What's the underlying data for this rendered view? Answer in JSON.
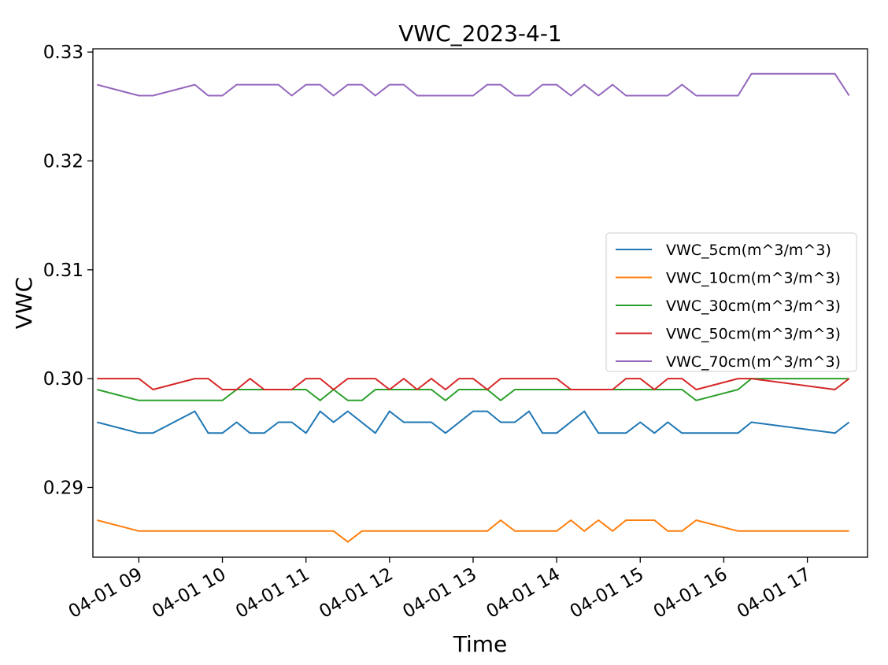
{
  "chart_data": {
    "type": "line",
    "title": "VWC_2023-4-1",
    "xlabel": "Time",
    "ylabel": "VWC",
    "x_unit": "hours",
    "xlim": [
      8.45,
      17.72
    ],
    "ylim": [
      0.2836,
      0.3303
    ],
    "yticks": [
      0.29,
      0.3,
      0.31,
      0.32,
      0.33
    ],
    "ytick_labels": [
      "0.29",
      "0.30",
      "0.31",
      "0.32",
      "0.33"
    ],
    "xticks": [
      9,
      10,
      11,
      12,
      13,
      14,
      15,
      16,
      17
    ],
    "xtick_labels": [
      "04-01 09",
      "04-01 10",
      "04-01 11",
      "04-01 12",
      "04-01 13",
      "04-01 14",
      "04-01 15",
      "04-01 16",
      "04-01 17"
    ],
    "legend_position": "center-right",
    "grid": false,
    "series": [
      {
        "name": "VWC_5cm(m^3/m^3)",
        "color": "#1f77b4",
        "x": [
          8.5,
          9.0,
          9.17,
          9.67,
          9.83,
          10.0,
          10.17,
          10.33,
          10.5,
          10.67,
          10.83,
          11.0,
          11.17,
          11.33,
          11.5,
          11.83,
          12.0,
          12.17,
          12.5,
          12.67,
          13.0,
          13.17,
          13.33,
          13.5,
          13.67,
          13.83,
          14.0,
          14.33,
          14.5,
          14.83,
          15.0,
          15.17,
          15.33,
          15.5,
          16.17,
          16.33,
          17.33,
          17.5
        ],
        "y": [
          0.296,
          0.295,
          0.295,
          0.297,
          0.295,
          0.295,
          0.296,
          0.295,
          0.295,
          0.296,
          0.296,
          0.295,
          0.297,
          0.296,
          0.297,
          0.295,
          0.297,
          0.296,
          0.296,
          0.295,
          0.297,
          0.297,
          0.296,
          0.296,
          0.297,
          0.295,
          0.295,
          0.297,
          0.295,
          0.295,
          0.296,
          0.295,
          0.296,
          0.295,
          0.295,
          0.296,
          0.295,
          0.296
        ]
      },
      {
        "name": "VWC_10cm(m^3/m^3)",
        "color": "#ff7f0e",
        "x": [
          8.5,
          9.0,
          11.33,
          11.5,
          11.67,
          13.17,
          13.33,
          13.5,
          14.0,
          14.17,
          14.33,
          14.5,
          14.67,
          14.83,
          15.17,
          15.33,
          15.5,
          15.67,
          16.17,
          17.5
        ],
        "y": [
          0.287,
          0.286,
          0.286,
          0.285,
          0.286,
          0.286,
          0.287,
          0.286,
          0.286,
          0.287,
          0.286,
          0.287,
          0.286,
          0.287,
          0.287,
          0.286,
          0.286,
          0.287,
          0.286,
          0.286
        ]
      },
      {
        "name": "VWC_30cm(m^3/m^3)",
        "color": "#2ca02c",
        "x": [
          8.5,
          9.0,
          10.0,
          10.17,
          11.0,
          11.17,
          11.33,
          11.5,
          11.67,
          11.83,
          12.5,
          12.67,
          12.83,
          13.17,
          13.33,
          13.5,
          15.5,
          15.67,
          16.17,
          16.33,
          17.5
        ],
        "y": [
          0.299,
          0.298,
          0.298,
          0.299,
          0.299,
          0.298,
          0.299,
          0.298,
          0.298,
          0.299,
          0.299,
          0.298,
          0.299,
          0.299,
          0.298,
          0.299,
          0.299,
          0.298,
          0.299,
          0.3,
          0.3
        ]
      },
      {
        "name": "VWC_50cm(m^3/m^3)",
        "color": "#d62728",
        "x": [
          8.5,
          9.0,
          9.17,
          9.67,
          9.83,
          10.0,
          10.17,
          10.33,
          10.5,
          10.83,
          11.0,
          11.17,
          11.33,
          11.5,
          11.83,
          12.0,
          12.17,
          12.33,
          12.5,
          12.67,
          12.83,
          13.0,
          13.17,
          13.33,
          14.0,
          14.17,
          14.67,
          14.83,
          15.0,
          15.17,
          15.33,
          15.5,
          15.67,
          16.17,
          16.33,
          17.33,
          17.5
        ],
        "y": [
          0.3,
          0.3,
          0.299,
          0.3,
          0.3,
          0.299,
          0.299,
          0.3,
          0.299,
          0.299,
          0.3,
          0.3,
          0.299,
          0.3,
          0.3,
          0.299,
          0.3,
          0.299,
          0.3,
          0.299,
          0.3,
          0.3,
          0.299,
          0.3,
          0.3,
          0.299,
          0.299,
          0.3,
          0.3,
          0.299,
          0.3,
          0.3,
          0.299,
          0.3,
          0.3,
          0.299,
          0.3
        ]
      },
      {
        "name": "VWC_70cm(m^3/m^3)",
        "color": "#9467bd",
        "x": [
          8.5,
          9.0,
          9.17,
          9.67,
          9.83,
          10.0,
          10.17,
          10.67,
          10.83,
          11.0,
          11.17,
          11.33,
          11.5,
          11.67,
          11.83,
          12.0,
          12.17,
          12.33,
          13.0,
          13.17,
          13.33,
          13.5,
          13.67,
          13.83,
          14.0,
          14.17,
          14.33,
          14.5,
          14.67,
          14.83,
          15.33,
          15.5,
          15.67,
          16.17,
          16.33,
          17.33,
          17.5
        ],
        "y": [
          0.327,
          0.326,
          0.326,
          0.327,
          0.326,
          0.326,
          0.327,
          0.327,
          0.326,
          0.327,
          0.327,
          0.326,
          0.327,
          0.327,
          0.326,
          0.327,
          0.327,
          0.326,
          0.326,
          0.327,
          0.327,
          0.326,
          0.326,
          0.327,
          0.327,
          0.326,
          0.327,
          0.326,
          0.327,
          0.326,
          0.326,
          0.327,
          0.326,
          0.326,
          0.328,
          0.328,
          0.326
        ]
      }
    ]
  }
}
